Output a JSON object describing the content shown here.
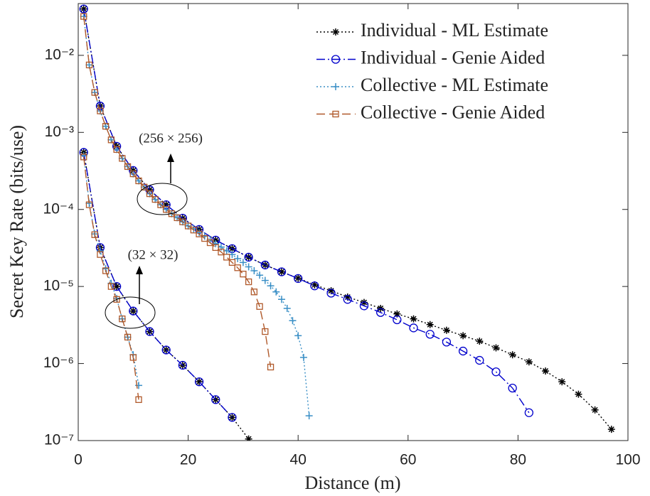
{
  "chart_data": {
    "type": "line",
    "y_scale": "log",
    "x_label": "Distance (m)",
    "y_label": "Secret Key Rate (bits/use)",
    "xlim": [
      0,
      100
    ],
    "xticks": [
      0,
      20,
      40,
      60,
      80,
      100
    ],
    "ylim": [
      1e-07,
      0.047
    ],
    "yticks": [
      {
        "value": 1e-07,
        "label": "10⁻⁷"
      },
      {
        "value": 1e-06,
        "label": "10⁻⁶"
      },
      {
        "value": 1e-05,
        "label": "10⁻⁵"
      },
      {
        "value": 0.0001,
        "label": "10⁻⁴"
      },
      {
        "value": 0.001,
        "label": "10⁻³"
      },
      {
        "value": 0.01,
        "label": "10⁻²"
      }
    ],
    "legend": "upper right",
    "annotations": [
      "(256 × 256)",
      "(32 × 32)"
    ],
    "series": [
      {
        "name": "Individual - ML Estimate",
        "color": "#000000",
        "linestyle": "dotted",
        "marker": "star",
        "x": [
          1,
          4,
          7,
          10,
          13,
          16,
          19,
          22,
          25,
          28,
          31,
          34,
          37,
          40,
          43,
          46,
          49,
          52,
          55,
          58,
          61,
          64,
          67,
          70,
          73,
          76,
          79,
          82,
          85,
          88,
          91,
          94,
          97,
          null,
          1,
          4,
          7,
          10,
          13,
          16,
          19,
          22,
          25,
          28,
          31
        ],
        "values": [
          0.04,
          0.0022,
          0.00066,
          0.00032,
          0.00018,
          0.000115,
          7.7e-05,
          5.5e-05,
          4e-05,
          3.1e-05,
          2.4e-05,
          1.9e-05,
          1.55e-05,
          1.28e-05,
          1.05e-05,
          8.8e-06,
          7.3e-06,
          6.2e-06,
          5.2e-06,
          4.4e-06,
          3.8e-06,
          3.2e-06,
          2.7e-06,
          2.3e-06,
          1.95e-06,
          1.6e-06,
          1.3e-06,
          1.05e-06,
          8e-07,
          5.8e-07,
          4e-07,
          2.5e-07,
          1.4e-07,
          null,
          0.00055,
          3.2e-05,
          1e-05,
          4.8e-06,
          2.6e-06,
          1.5e-06,
          9.5e-07,
          5.8e-07,
          3.4e-07,
          2e-07,
          1.05e-07
        ]
      },
      {
        "name": "Individual - Genie Aided",
        "color": "#0000cc",
        "linestyle": "dashdot",
        "marker": "circle",
        "x": [
          1,
          4,
          7,
          10,
          13,
          16,
          19,
          22,
          25,
          28,
          31,
          34,
          37,
          40,
          43,
          46,
          49,
          52,
          55,
          58,
          61,
          64,
          67,
          70,
          73,
          76,
          79,
          82,
          null,
          1,
          4,
          7,
          10,
          13,
          16,
          19,
          22,
          25,
          28
        ],
        "values": [
          0.04,
          0.0022,
          0.00066,
          0.00032,
          0.00018,
          0.000115,
          7.7e-05,
          5.5e-05,
          4e-05,
          3.1e-05,
          2.4e-05,
          1.9e-05,
          1.55e-05,
          1.27e-05,
          1.02e-05,
          8.2e-06,
          6.8e-06,
          5.6e-06,
          4.6e-06,
          3.7e-06,
          2.9e-06,
          2.4e-06,
          1.9e-06,
          1.45e-06,
          1.1e-06,
          7.8e-07,
          4.8e-07,
          2.3e-07,
          null,
          0.00055,
          3.2e-05,
          1e-05,
          4.8e-06,
          2.6e-06,
          1.5e-06,
          9.5e-07,
          5.8e-07,
          3.4e-07,
          2e-07
        ]
      },
      {
        "name": "Collective - ML Estimate",
        "color": "#3a8fc6",
        "linestyle": "dotted",
        "marker": "plus",
        "x": [
          1,
          2,
          3,
          4,
          5,
          6,
          7,
          8,
          9,
          10,
          11,
          12,
          13,
          14,
          15,
          16,
          17,
          18,
          19,
          20,
          21,
          22,
          23,
          24,
          25,
          26,
          27,
          28,
          29,
          30,
          31,
          32,
          33,
          34,
          35,
          36,
          37,
          38,
          39,
          40,
          41,
          42,
          null,
          1,
          2,
          3,
          4,
          5,
          6,
          7,
          8,
          9,
          10,
          11
        ],
        "values": [
          0.032,
          0.0075,
          0.0033,
          0.0019,
          0.0012,
          0.0008,
          0.0006,
          0.00046,
          0.00036,
          0.00029,
          0.000235,
          0.000195,
          0.00016,
          0.000135,
          0.000115,
          0.0001,
          8.8e-05,
          7.8e-05,
          6.9e-05,
          6.1e-05,
          5.6e-05,
          5e-05,
          4.5e-05,
          4e-05,
          3.6e-05,
          3.25e-05,
          2.9e-05,
          2.6e-05,
          2.3e-05,
          2.05e-05,
          1.8e-05,
          1.6e-05,
          1.4e-05,
          1.2e-05,
          1.02e-05,
          8.5e-06,
          6.8e-06,
          5.2e-06,
          3.6e-06,
          2.3e-06,
          1.2e-06,
          2.1e-07,
          null,
          0.0005,
          0.00012,
          4.8e-05,
          2.9e-05,
          1.7e-05,
          1.1e-05,
          7e-06,
          3.8e-06,
          2.2e-06,
          1.3e-06,
          5.2e-07
        ]
      },
      {
        "name": "Collective - Genie Aided",
        "color": "#b0592a",
        "linestyle": "dashed",
        "marker": "square",
        "x": [
          1,
          2,
          3,
          4,
          5,
          6,
          7,
          8,
          9,
          10,
          11,
          12,
          13,
          14,
          15,
          16,
          17,
          18,
          19,
          20,
          21,
          22,
          23,
          24,
          25,
          26,
          27,
          28,
          29,
          30,
          31,
          32,
          33,
          34,
          35,
          null,
          1,
          2,
          3,
          4,
          5,
          6,
          7,
          8,
          9,
          10,
          11
        ],
        "values": [
          0.032,
          0.0075,
          0.0033,
          0.0019,
          0.0012,
          0.0008,
          0.0006,
          0.00046,
          0.00036,
          0.00029,
          0.000235,
          0.000195,
          0.00016,
          0.000135,
          0.000115,
          0.0001,
          8.8e-05,
          7.8e-05,
          6.9e-05,
          6.1e-05,
          5.4e-05,
          4.8e-05,
          4.2e-05,
          3.7e-05,
          3.2e-05,
          2.8e-05,
          2.4e-05,
          2.05e-05,
          1.75e-05,
          1.45e-05,
          1.15e-05,
          8.5e-06,
          5.5e-06,
          2.6e-06,
          9e-07,
          null,
          0.00048,
          0.000115,
          4.7e-05,
          2.6e-05,
          1.6e-05,
          1e-05,
          6.8e-06,
          3.8e-06,
          2.2e-06,
          1.2e-06,
          3.4e-07
        ]
      }
    ]
  }
}
